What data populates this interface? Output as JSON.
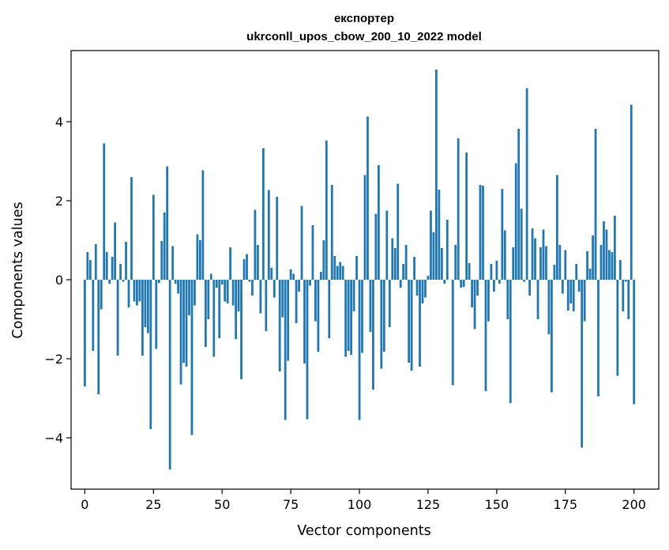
{
  "chart_data": {
    "type": "bar",
    "title_line1": "експортер",
    "title_line2": "ukrconll_upos_cbow_200_10_2022 model",
    "xlabel": "Vector components",
    "ylabel": "Components values",
    "xlim": [
      -5,
      209
    ],
    "ylim": [
      -5.3,
      5.8
    ],
    "xticks": [
      0,
      25,
      50,
      75,
      100,
      125,
      150,
      175,
      200
    ],
    "yticks": [
      -4,
      -2,
      0,
      2,
      4
    ],
    "ytick_labels": [
      "−4",
      "−2",
      "0",
      "2",
      "4"
    ],
    "bar_color": "#1f77b4",
    "grid": false,
    "values": [
      -2.7,
      0.7,
      0.5,
      -1.8,
      0.9,
      -2.9,
      -0.75,
      3.45,
      0.7,
      -0.1,
      0.58,
      1.45,
      -1.92,
      0.4,
      -0.05,
      0.96,
      -0.7,
      2.6,
      -0.55,
      -0.65,
      -0.55,
      -1.92,
      -1.2,
      -1.35,
      -3.78,
      2.15,
      -1.75,
      -0.08,
      0.98,
      1.7,
      2.87,
      -4.8,
      0.85,
      -0.1,
      -0.35,
      -2.65,
      -2.1,
      -2.2,
      -0.9,
      -3.93,
      -0.65,
      1.15,
      1.0,
      2.77,
      -1.7,
      -1.0,
      0.15,
      -1.95,
      -0.2,
      -1.48,
      -0.12,
      -0.55,
      -0.6,
      0.82,
      -0.65,
      -1.5,
      -0.8,
      -2.52,
      0.52,
      0.65,
      -0.05,
      -0.4,
      1.77,
      0.88,
      -0.85,
      3.33,
      -1.3,
      2.27,
      0.3,
      -0.45,
      2.1,
      -2.32,
      -0.95,
      -3.55,
      -2.05,
      0.26,
      0.15,
      -1.1,
      -0.3,
      1.87,
      -2.12,
      -3.53,
      -0.15,
      1.38,
      -1.05,
      -1.82,
      0.2,
      1.0,
      3.52,
      -1.48,
      2.4,
      0.6,
      0.35,
      0.45,
      0.35,
      -1.95,
      -1.8,
      -1.9,
      -0.8,
      0.6,
      -3.55,
      -1.85,
      2.65,
      4.13,
      -1.32,
      -2.78,
      1.67,
      2.9,
      -2.25,
      -1.82,
      1.75,
      -1.2,
      1.05,
      0.8,
      2.43,
      -0.2,
      0.4,
      0.88,
      -2.1,
      -2.3,
      0.58,
      -0.4,
      -2.2,
      -0.6,
      -0.45,
      0.1,
      1.75,
      1.2,
      5.32,
      2.28,
      0.8,
      -0.1,
      1.52,
      0.0,
      -2.67,
      0.88,
      3.58,
      -0.2,
      -0.18,
      3.22,
      0.42,
      -0.7,
      -1.25,
      -0.4,
      2.4,
      2.38,
      -2.82,
      -1.05,
      0.4,
      -0.3,
      0.48,
      -0.1,
      2.3,
      1.25,
      -1.0,
      -3.12,
      0.82,
      2.95,
      3.82,
      1.8,
      -0.05,
      4.85,
      -0.4,
      1.3,
      1.05,
      -1.0,
      0.82,
      1.27,
      0.85,
      -1.38,
      -2.85,
      0.38,
      2.65,
      0.88,
      -0.35,
      0.75,
      -0.78,
      -0.6,
      -0.8,
      0.4,
      -0.3,
      -4.25,
      -1.05,
      0.72,
      0.28,
      1.12,
      3.82,
      -2.95,
      0.88,
      1.48,
      1.27,
      0.75,
      0.7,
      1.62,
      -2.43,
      0.5,
      -0.8,
      -0.05,
      -1.0,
      4.43,
      -3.15
    ]
  }
}
